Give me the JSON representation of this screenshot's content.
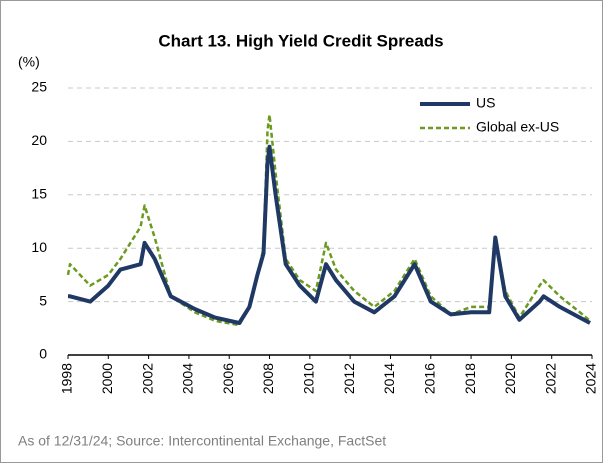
{
  "chart_data": {
    "type": "line",
    "title": "Chart 13. High Yield Credit Spreads",
    "y_label": "(%)",
    "note": "As of 12/31/24; Source: Intercontinental Exchange, FactSet",
    "x": [
      1998.0,
      1998.1,
      1999.1,
      2000.0,
      2000.6,
      2001.6,
      2001.8,
      2002.3,
      2003.1,
      2004.3,
      2005.3,
      2006.5,
      2007.0,
      2007.4,
      2007.7,
      2007.9,
      2008.0,
      2008.3,
      2008.8,
      2009.5,
      2010.3,
      2010.8,
      2011.3,
      2012.2,
      2013.2,
      2014.2,
      2015.2,
      2016.0,
      2017.0,
      2018.0,
      2018.9,
      2019.2,
      2019.7,
      2020.4,
      2021.4,
      2021.6,
      2022.4,
      2023.4,
      2023.9
    ],
    "series": [
      {
        "name": "US",
        "color": "#1f3864",
        "dash": false,
        "values": [
          5.5,
          5.5,
          5,
          6.5,
          8,
          8.5,
          10.5,
          9,
          5.5,
          4.3,
          3.5,
          3,
          4.5,
          7.5,
          9.5,
          18,
          19.5,
          15,
          8.5,
          6.5,
          5,
          8.5,
          7,
          5,
          4,
          5.5,
          8.5,
          5,
          3.8,
          4,
          4,
          11,
          5.5,
          3.3,
          5,
          5.5,
          4.5,
          3.5,
          3
        ]
      },
      {
        "name": "Global ex-US",
        "color": "#6a9a1f",
        "dash": true,
        "values": [
          7.5,
          8.5,
          6.5,
          7.5,
          9,
          12,
          14,
          11,
          5.5,
          4,
          3.2,
          2.8,
          4.5,
          7.5,
          10,
          21,
          22.5,
          17,
          9,
          7,
          6,
          10.5,
          8,
          6,
          4.5,
          6,
          9,
          5.5,
          3.8,
          4.5,
          4.5,
          11,
          6,
          3.5,
          6.5,
          7,
          5.5,
          4,
          3.2
        ]
      }
    ],
    "xlim": [
      1998,
      2024
    ],
    "xticks": [
      1998,
      2000,
      2002,
      2004,
      2006,
      2008,
      2010,
      2012,
      2014,
      2016,
      2018,
      2020,
      2022,
      2024
    ],
    "ylim": [
      0,
      25
    ],
    "yticks": [
      0,
      5,
      10,
      15,
      20,
      25
    ],
    "grid": true
  }
}
